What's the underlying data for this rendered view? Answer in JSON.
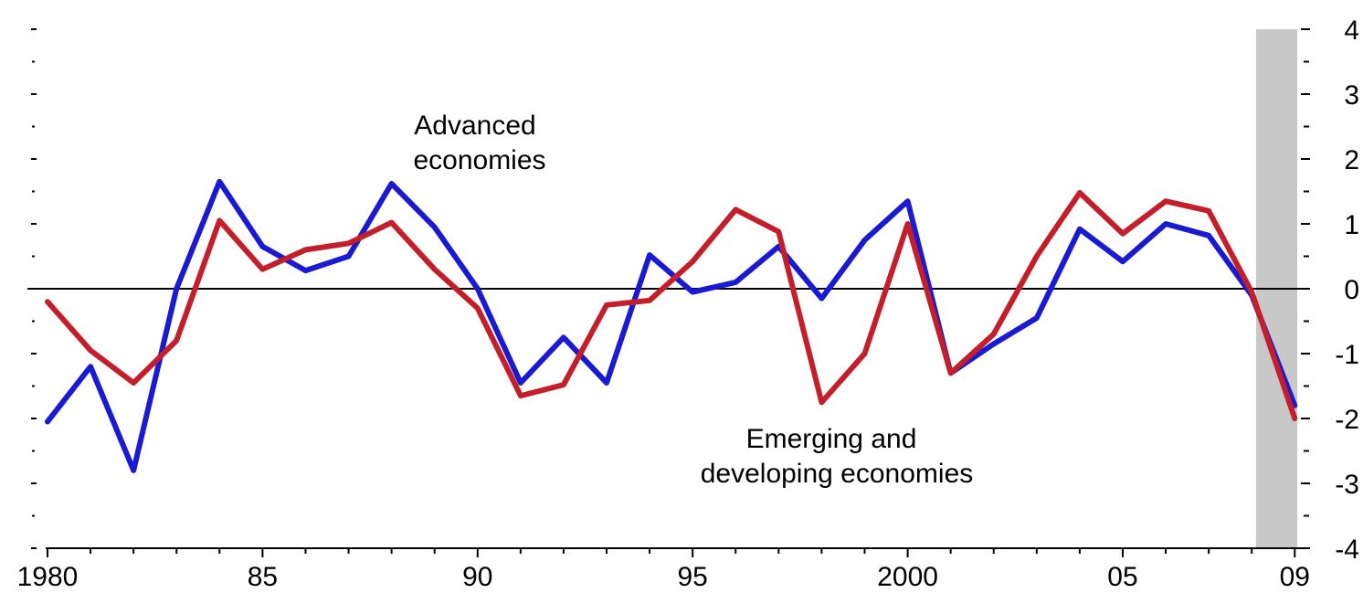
{
  "chart_data": {
    "type": "line",
    "title": "",
    "xlabel": "",
    "ylabel": "",
    "x": [
      1980,
      1981,
      1982,
      1983,
      1984,
      1985,
      1986,
      1987,
      1988,
      1989,
      1990,
      1991,
      1992,
      1993,
      1994,
      1995,
      1996,
      1997,
      1998,
      1999,
      2000,
      2001,
      2002,
      2003,
      2004,
      2005,
      2006,
      2007,
      2008,
      2009
    ],
    "xlim": [
      1980,
      2009.1
    ],
    "ylim": [
      -4,
      4
    ],
    "x_tick_values": [
      1980,
      1985,
      1990,
      1995,
      2000,
      2005,
      2009
    ],
    "x_tick_labels": [
      "1980",
      "85",
      "90",
      "95",
      "2000",
      "05",
      "09"
    ],
    "y_tick_values": [
      4,
      3,
      2,
      1,
      0,
      -1,
      -2,
      -3,
      -4
    ],
    "y_tick_labels": [
      "4",
      "3",
      "2",
      "1",
      "0",
      "-1",
      "-2",
      "-3",
      "-4"
    ],
    "y_axis_side": "right",
    "zero_line": true,
    "grid": false,
    "shaded_region": {
      "x_start": 2008.1,
      "x_end": 2009.7,
      "color": "#c8c8c8"
    },
    "series": [
      {
        "name": "Advanced economies",
        "color": "#1a1ad2",
        "values": [
          -2.05,
          -1.2,
          -2.8,
          0.0,
          1.65,
          0.65,
          0.28,
          0.5,
          1.62,
          0.95,
          0.0,
          -1.45,
          -0.75,
          -1.45,
          0.52,
          -0.05,
          0.1,
          0.65,
          -0.15,
          0.75,
          1.35,
          -1.3,
          -0.85,
          -0.45,
          0.92,
          0.42,
          1.0,
          0.82,
          -0.1,
          -1.8
        ]
      },
      {
        "name": "Emerging and developing economies",
        "color": "#c41e2a",
        "values": [
          -0.2,
          -0.95,
          -1.45,
          -0.8,
          1.05,
          0.3,
          0.6,
          0.7,
          1.02,
          0.3,
          -0.3,
          -1.65,
          -1.48,
          -0.25,
          -0.18,
          0.42,
          1.22,
          0.88,
          -1.75,
          -1.0,
          1.0,
          -1.3,
          -0.7,
          0.5,
          1.48,
          0.85,
          1.35,
          1.2,
          -0.05,
          -2.0
        ]
      }
    ],
    "annotations": [
      {
        "lines": [
          "Advanced",
          "economies"
        ],
        "series": "Advanced economies"
      },
      {
        "lines": [
          "Emerging and",
          "developing economies"
        ],
        "series": "Emerging and developing economies"
      }
    ]
  }
}
